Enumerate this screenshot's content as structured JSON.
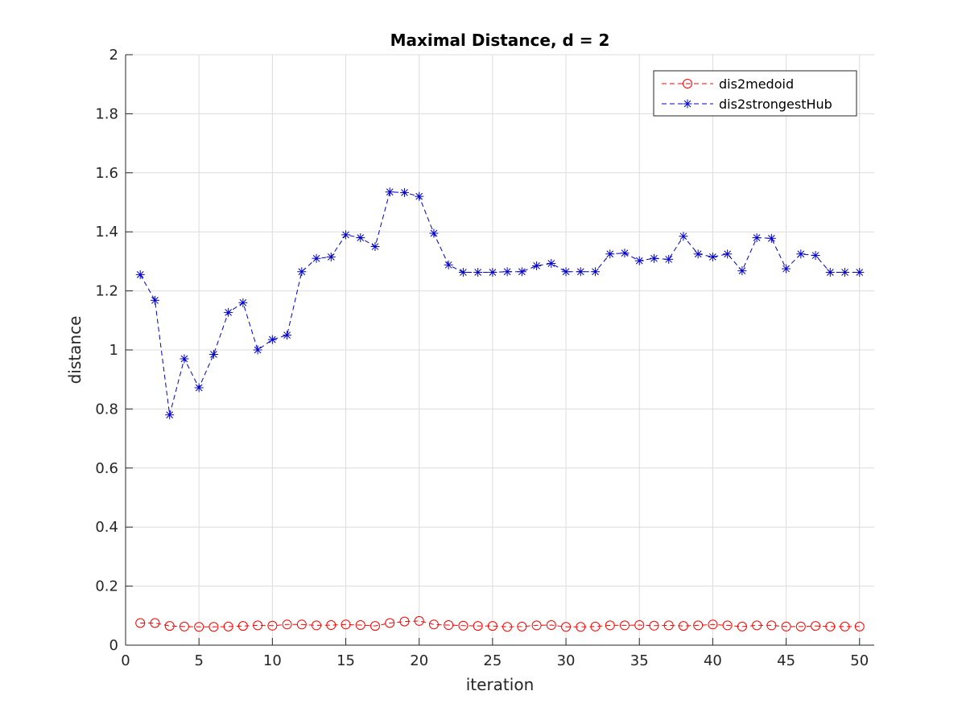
{
  "chart_data": {
    "type": "line",
    "title": "Maximal Distance, d = 2",
    "xlabel": "iteration",
    "ylabel": "distance",
    "xlim": [
      0,
      51
    ],
    "ylim": [
      0,
      2
    ],
    "xticks": [
      0,
      5,
      10,
      15,
      20,
      25,
      30,
      35,
      40,
      45,
      50
    ],
    "yticks": [
      0,
      0.2,
      0.4,
      0.6,
      0.8,
      1,
      1.2,
      1.4,
      1.6,
      1.8,
      2
    ],
    "xtick_labels": [
      "0",
      "5",
      "10",
      "15",
      "20",
      "25",
      "30",
      "35",
      "40",
      "45",
      "50"
    ],
    "ytick_labels": [
      "0",
      "0.2",
      "0.4",
      "0.6",
      "0.8",
      "1",
      "1.2",
      "1.4",
      "1.6",
      "1.8",
      "2"
    ],
    "grid": true,
    "legend_position": "top-right",
    "x": [
      1,
      2,
      3,
      4,
      5,
      6,
      7,
      8,
      9,
      10,
      11,
      12,
      13,
      14,
      15,
      16,
      17,
      18,
      19,
      20,
      21,
      22,
      23,
      24,
      25,
      26,
      27,
      28,
      29,
      30,
      31,
      32,
      33,
      34,
      35,
      36,
      37,
      38,
      39,
      40,
      41,
      42,
      43,
      44,
      45,
      46,
      47,
      48,
      49,
      50
    ],
    "series": [
      {
        "name": "dis2medoid",
        "color": "#ff0000",
        "marker": "circle",
        "line_style": "dashed",
        "values": [
          0.075,
          0.075,
          0.065,
          0.063,
          0.062,
          0.062,
          0.063,
          0.065,
          0.067,
          0.066,
          0.07,
          0.07,
          0.067,
          0.068,
          0.07,
          0.068,
          0.065,
          0.075,
          0.08,
          0.082,
          0.07,
          0.068,
          0.066,
          0.065,
          0.065,
          0.062,
          0.063,
          0.067,
          0.068,
          0.062,
          0.062,
          0.063,
          0.067,
          0.067,
          0.068,
          0.066,
          0.067,
          0.065,
          0.067,
          0.07,
          0.067,
          0.063,
          0.067,
          0.067,
          0.063,
          0.063,
          0.065,
          0.063,
          0.063,
          0.063
        ]
      },
      {
        "name": "dis2strongestHub",
        "color": "#0000cc",
        "marker": "asterisk",
        "line_style": "dashed",
        "values": [
          1.255,
          1.168,
          0.78,
          0.97,
          0.872,
          0.985,
          1.127,
          1.16,
          1.0,
          1.035,
          1.05,
          1.265,
          1.31,
          1.315,
          1.39,
          1.38,
          1.35,
          1.535,
          1.533,
          1.52,
          1.395,
          1.288,
          1.263,
          1.263,
          1.263,
          1.265,
          1.265,
          1.285,
          1.293,
          1.265,
          1.265,
          1.265,
          1.325,
          1.328,
          1.302,
          1.31,
          1.307,
          1.385,
          1.325,
          1.315,
          1.325,
          1.268,
          1.38,
          1.378,
          1.275,
          1.325,
          1.32,
          1.263,
          1.263,
          1.263
        ]
      }
    ]
  }
}
